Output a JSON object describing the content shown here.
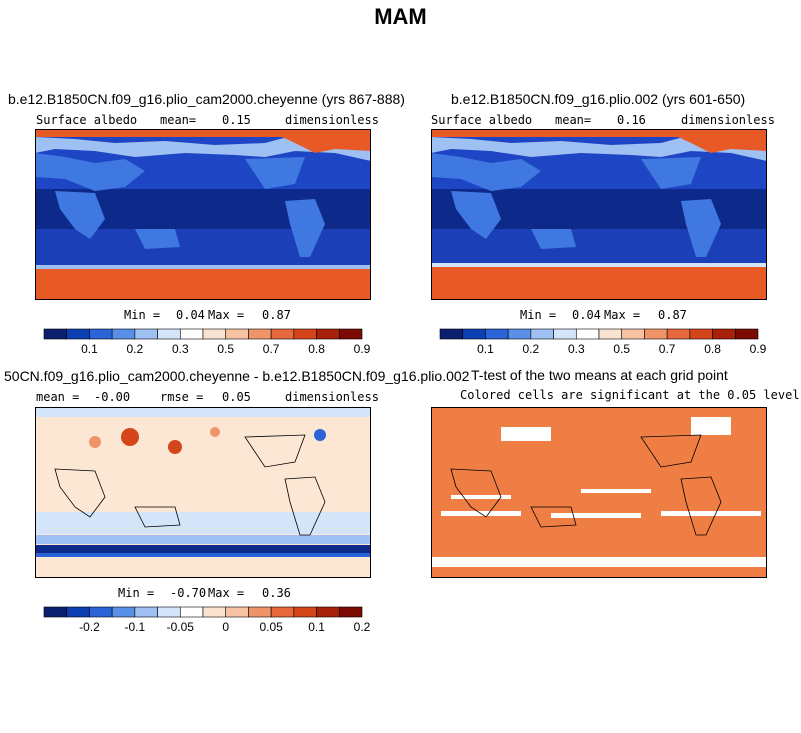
{
  "season": "MAM",
  "panels": [
    {
      "title": "b.e12.B1850CN.f09_g16.plio_cam2000.cheyenne (yrs 867-888)",
      "variable": "Surface albedo",
      "mean_label": "mean=",
      "mean_value": "0.15",
      "units": "dimensionless",
      "min_label": "Min =",
      "min_value": "0.04",
      "max_label": "Max =",
      "max_value": "0.87"
    },
    {
      "title": "b.e12.B1850CN.f09_g16.plio.002 (yrs 601-650)",
      "variable": "Surface albedo",
      "mean_label": "mean=",
      "mean_value": "0.16",
      "units": "dimensionless",
      "min_label": "Min =",
      "min_value": "0.04",
      "max_label": "Max =",
      "max_value": "0.87"
    },
    {
      "title": "50CN.f09_g16.plio_cam2000.cheyenne - b.e12.B1850CN.f09_g16.plio.002",
      "mean_label": "mean =",
      "mean_value": "-0.00",
      "rmse_label": "rmse =",
      "rmse_value": "0.05",
      "units": "dimensionless",
      "min_label": "Min =",
      "min_value": "-0.70",
      "max_label": "Max =",
      "max_value": "0.36"
    },
    {
      "title": "T-test of the two means at each grid point",
      "subtitle": "Colored cells are significant at the 0.05 level"
    }
  ],
  "chart_data": [
    {
      "type": "heatmap",
      "title": "b.e12.B1850CN.f09_g16.plio_cam2000.cheyenne (yrs 867-888)",
      "variable": "Surface albedo",
      "mean": 0.15,
      "min": 0.04,
      "max": 0.87,
      "units": "dimensionless",
      "colorbar": {
        "colors": [
          "#0a1f6e",
          "#0d3fb4",
          "#2a64d8",
          "#5a8fe8",
          "#9fc0f2",
          "#d4e5fa",
          "#ffffff",
          "#fbe3d2",
          "#f6c2a2",
          "#ef9469",
          "#e7683a",
          "#d4461a",
          "#a8200a",
          "#7a0a02"
        ],
        "tick_labels": [
          "0.1",
          "0.2",
          "0.3",
          "0.5",
          "0.7",
          "0.8",
          "0.9"
        ]
      }
    },
    {
      "type": "heatmap",
      "title": "b.e12.B1850CN.f09_g16.plio.002 (yrs 601-650)",
      "variable": "Surface albedo",
      "mean": 0.16,
      "min": 0.04,
      "max": 0.87,
      "units": "dimensionless",
      "colorbar": {
        "colors": [
          "#0a1f6e",
          "#0d3fb4",
          "#2a64d8",
          "#5a8fe8",
          "#9fc0f2",
          "#d4e5fa",
          "#ffffff",
          "#fbe3d2",
          "#f6c2a2",
          "#ef9469",
          "#e7683a",
          "#d4461a",
          "#a8200a",
          "#7a0a02"
        ],
        "tick_labels": [
          "0.1",
          "0.2",
          "0.3",
          "0.5",
          "0.7",
          "0.8",
          "0.9"
        ]
      }
    },
    {
      "type": "heatmap",
      "title": "50CN.f09_g16.plio_cam2000.cheyenne - b.e12.B1850CN.f09_g16.plio.002",
      "mean": -0.0,
      "rmse": 0.05,
      "min": -0.7,
      "max": 0.36,
      "units": "dimensionless",
      "colorbar": {
        "colors": [
          "#0a1f6e",
          "#0d3fb4",
          "#2a64d8",
          "#5a8fe8",
          "#9fc0f2",
          "#d4e5fa",
          "#ffffff",
          "#fbe3d2",
          "#f6c2a2",
          "#ef9469",
          "#e7683a",
          "#d4461a",
          "#a8200a",
          "#7a0a02"
        ],
        "tick_labels": [
          "-0.2",
          "-0.1",
          "-0.05",
          "0",
          "0.05",
          "0.1",
          "0.2"
        ]
      }
    },
    {
      "type": "heatmap",
      "title": "T-test of the two means at each grid point",
      "subtitle": "Colored cells are significant at the 0.05 level",
      "significant_color": "#ef7e45"
    }
  ],
  "colors": {
    "ocean_deep": "#0d2a8a",
    "ocean_mid": "#1e46c4",
    "land_blue": "#3f78e0",
    "ice_red": "#e85a25",
    "diff_background": "#fce6d4",
    "ttest_fill": "#ef7e45"
  }
}
